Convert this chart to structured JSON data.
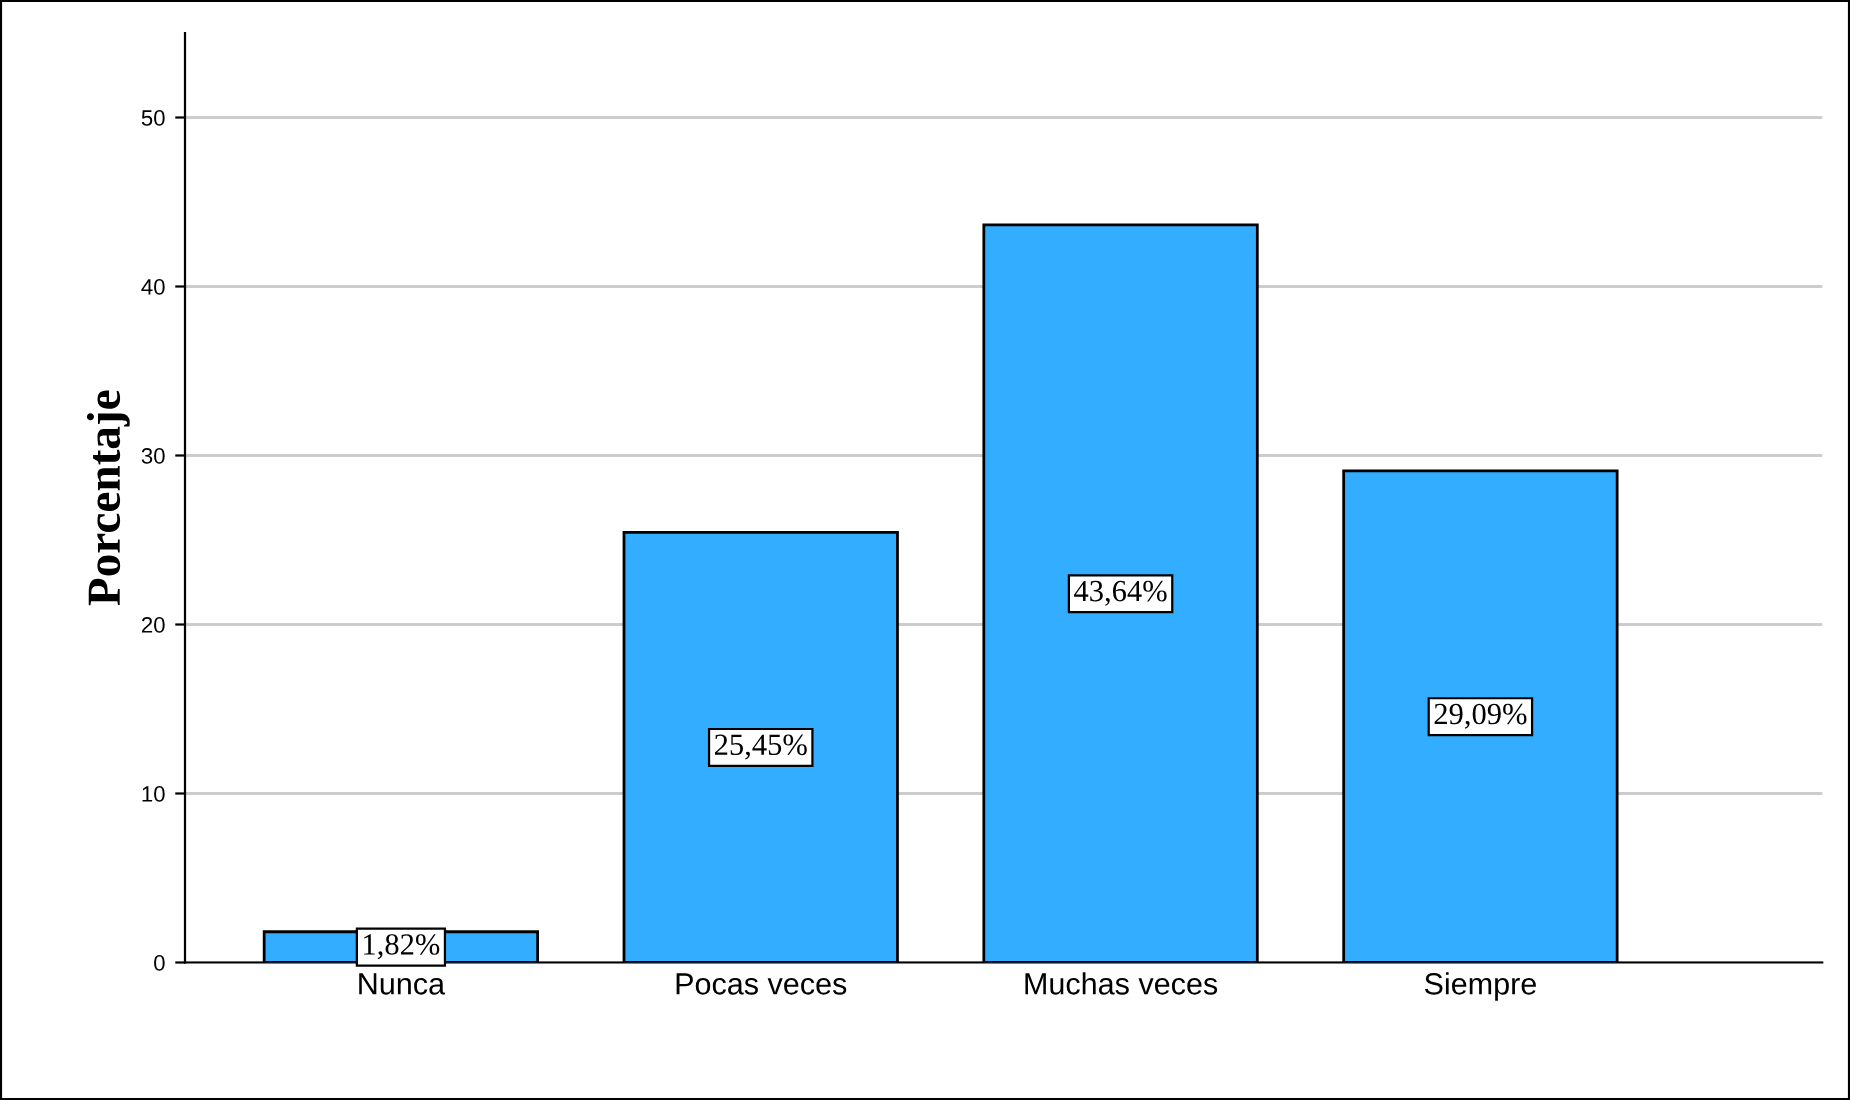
{
  "chart_data": {
    "type": "bar",
    "ylabel": "Porcentaje",
    "categories": [
      "Nunca",
      "Pocas veces",
      "Muchas veces",
      "Siempre"
    ],
    "values": [
      1.82,
      25.45,
      43.64,
      29.09
    ],
    "value_labels": [
      "1,82%",
      "25,45%",
      "43,64%",
      "29,09%"
    ],
    "color": "#33adff",
    "ylim": [
      0,
      55
    ],
    "yticks": [
      0,
      10,
      20,
      30,
      40,
      50
    ],
    "grid": "y"
  }
}
